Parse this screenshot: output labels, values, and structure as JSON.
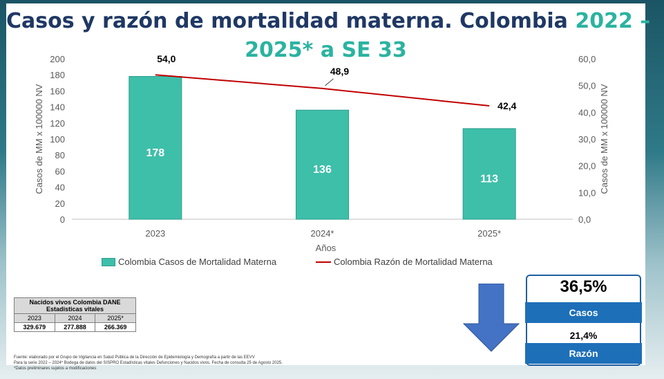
{
  "title": {
    "line1_a": "Casos y razón de mortalidad materna",
    "line1_b": ". Colombia",
    "line1_c": " 2022 –",
    "line2": "2025* a SE 33"
  },
  "chart_data": {
    "type": "bar",
    "categories": [
      "2023",
      "2024*",
      "2025*"
    ],
    "series": [
      {
        "name": "Colombia  Casos de Mortalidad Materna",
        "kind": "bar",
        "axis": "left",
        "values": [
          178,
          136,
          113
        ],
        "labels": [
          "178",
          "136",
          "113"
        ]
      },
      {
        "name": "Colombia  Razón de Mortalidad Materna",
        "kind": "line",
        "axis": "right",
        "values": [
          54.0,
          48.9,
          42.4
        ],
        "labels": [
          "54,0",
          "48,9",
          "42,4"
        ]
      }
    ],
    "xlabel": "Años",
    "ylabel": "Casos de MM x 100000 NV",
    "y2label": "Casos de MM x 100000 NV",
    "ylim": [
      0,
      200
    ],
    "y2lim": [
      0,
      60
    ],
    "yticks": [
      "0",
      "20",
      "40",
      "60",
      "80",
      "100",
      "120",
      "140",
      "160",
      "180",
      "200"
    ],
    "y2ticks": [
      "0,0",
      "10,0",
      "20,0",
      "30,0",
      "40,0",
      "50,0",
      "60,0"
    ],
    "legend_position": "bottom",
    "colors": {
      "bar": "#3ebfaa",
      "bar_edge": "#2a9c89",
      "line": "#c00000"
    }
  },
  "births_table": {
    "title1": "Nacidos vivos Colombia DANE",
    "title2": "Estadisticas vitales",
    "years": [
      "2023",
      "2024",
      "2025*"
    ],
    "values": [
      "329.679",
      "277.888",
      "266.369"
    ]
  },
  "footnotes": {
    "line1": "Fuente:  elaborado por  el Grupo de Vigilancia en Salud Pública de la Dirección de Epidemiología y Demografía a partir de las EEVV",
    "line2": "Para la serie 2022 – 2024*  Bodega de datos del SISPRO Estadísticas vitales Defunciones y Nacidos vivos. Fecha de consulta 25 de Agosto  2025.",
    "line3": "*Datos preliminares sujetos a modificaciones"
  },
  "summary": {
    "cases_pct": "36,5%",
    "cases_label": "Casos",
    "ratio_pct": "21,4%",
    "ratio_label": "Razón",
    "arrow_icon": "down-arrow-icon",
    "accent": "#1d6fb8"
  }
}
